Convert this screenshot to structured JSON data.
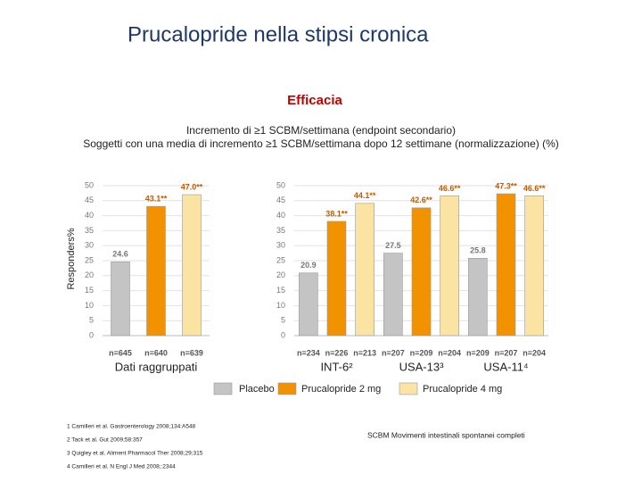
{
  "header": {
    "title": "Prucalopride nella stipsi cronica",
    "section": "Efficacia",
    "subtitle": [
      "Incremento di ≥1 SCBM/settimana (endpoint secondario)",
      "Soggetti con una media di incremento ≥1 SCBM/settimana dopo 12 settimane (normalizzazione) (%)"
    ]
  },
  "chart_data": [
    {
      "type": "bar",
      "y_label": "Responders%",
      "ylim": [
        0,
        50
      ],
      "yticks": [
        0,
        5,
        10,
        15,
        20,
        25,
        30,
        35,
        40,
        45,
        50
      ],
      "grid": true,
      "categories": [
        "Dati raggruppati"
      ],
      "series": [
        {
          "name": "Placebo",
          "color": "#c4c4c4",
          "values": [
            24.6
          ],
          "value_labels": [
            "24.6"
          ],
          "n_labels": [
            "n=645"
          ]
        },
        {
          "name": "Prucalopride 2 mg",
          "color": "#f39200",
          "values": [
            43.1
          ],
          "value_labels": [
            "43.1**"
          ],
          "n_labels": [
            "n=640"
          ]
        },
        {
          "name": "Prucalopride 4 mg",
          "color": "#fbe3a4",
          "values": [
            47.0
          ],
          "value_labels": [
            "47.0**"
          ],
          "n_labels": [
            "n=639"
          ]
        }
      ]
    },
    {
      "type": "bar",
      "ylim": [
        0,
        50
      ],
      "yticks": [
        0,
        5,
        10,
        15,
        20,
        25,
        30,
        35,
        40,
        45,
        50
      ],
      "grid": true,
      "categories": [
        "INT-6²",
        "USA-13³",
        "USA-11⁴"
      ],
      "series": [
        {
          "color": "#c4c4c4",
          "values": [
            20.9,
            27.5,
            25.8
          ],
          "value_labels": [
            "20.9",
            "27.5",
            "25.8"
          ],
          "n_labels": [
            "n=234",
            "n=207",
            "n=209"
          ]
        },
        {
          "color": "#f39200",
          "values": [
            38.1,
            42.6,
            47.3
          ],
          "value_labels": [
            "38.1**",
            "42.6**",
            "47.3**"
          ],
          "n_labels": [
            "n=226",
            "n=209",
            "n=207"
          ]
        },
        {
          "color": "#fbe3a4",
          "values": [
            44.1,
            46.6,
            46.6
          ],
          "value_labels": [
            "44.1**",
            "46.6**",
            "46.6**"
          ],
          "n_labels": [
            "n=213",
            "n=204",
            "n=204"
          ]
        }
      ]
    }
  ],
  "footnotes": [
    "1 Camilleri et al. Gastroenterology 2008;134:A548",
    "2 Tack et al. Gut 2009;58:357",
    "3 Quigley et al. Aliment Pharmacol Ther 2008;29;315",
    "4 Camilleri et al. N Engl J Med 2008;:2344"
  ],
  "note": "SCBM Movimenti intestinali spontanei completi"
}
